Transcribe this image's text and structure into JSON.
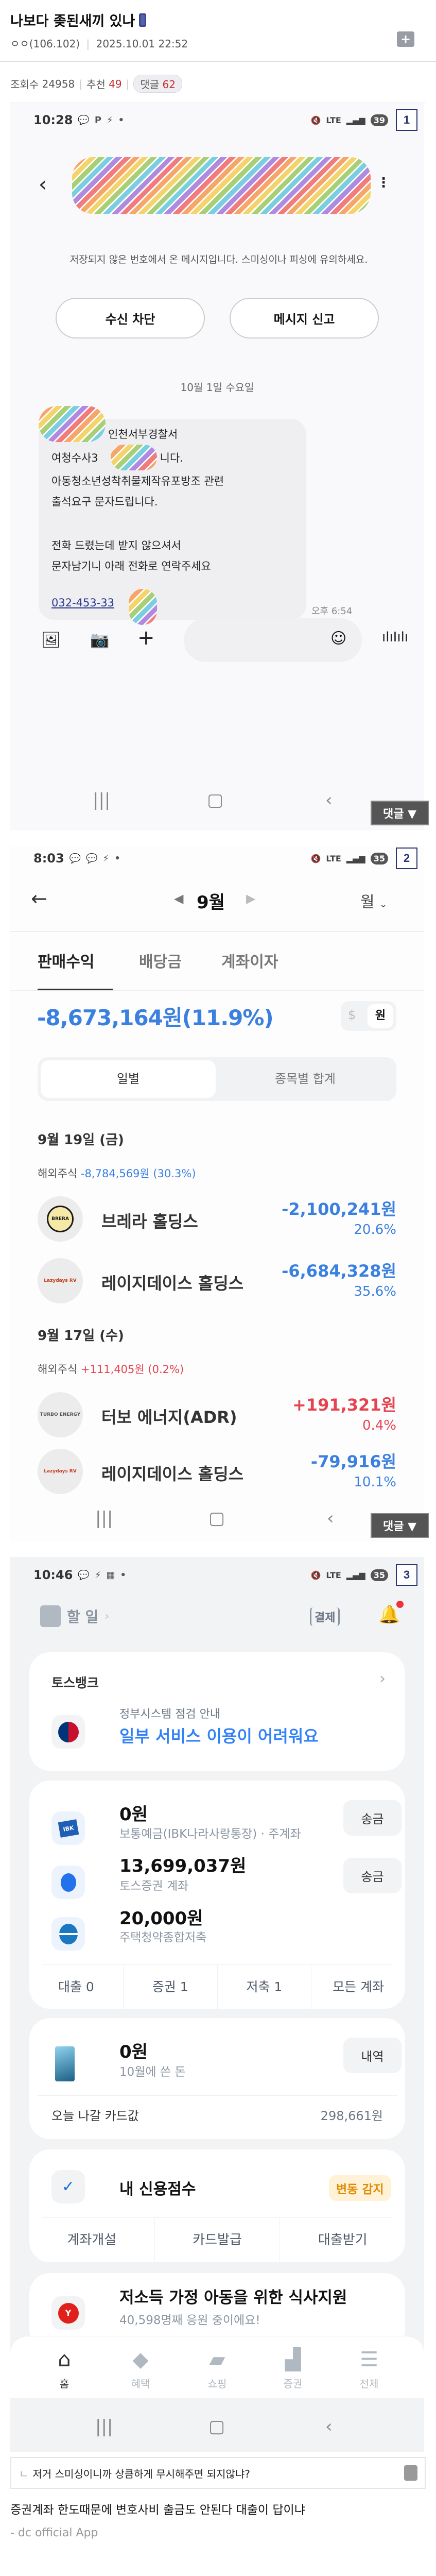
{
  "post": {
    "title": "나보다 좆된새끼 있나",
    "author": "ㅇㅇ(106.102)",
    "date": "2025.10.01 22:52",
    "views_label": "조회수",
    "views": "24958",
    "recommend_label": "추천",
    "recommend": "49",
    "comments_label": "댓글",
    "comments": "62",
    "comment_button": "댓글 ▼"
  },
  "shot1": {
    "badge": "1",
    "time": "10:28",
    "battery": "39",
    "warning": "저장되지 않은 번호에서 온 메시지입니다. 스미싱이나 피싱에 유의하세요.",
    "block_button": "수신 차단",
    "report_button": "메시지 신고",
    "date_divider": "10월 1일 수요일",
    "message_lines": [
      "인천서부경찰서",
      "여청수사3",
      "니다.",
      "아동청소년성착취물제작유포방조 관련",
      "출석요구 문자드립니다.",
      "전화 드렸는데 받지 않으셔서",
      "문자남기니 아래 전화로 연락주세요"
    ],
    "phone": "032-453-33",
    "msg_time": "오후 6:54"
  },
  "shot2": {
    "badge": "2",
    "time": "8:03",
    "battery": "35",
    "month": "9월",
    "period": "월",
    "tabs": [
      "판매수익",
      "배당금",
      "계좌이자"
    ],
    "total": "-8,673,164원(11.9%)",
    "currency": [
      "$",
      "원"
    ],
    "segments": [
      "일별",
      "종목별 합계"
    ],
    "groups": [
      {
        "date": "9월 19일 (금)",
        "category": "해외주식",
        "summary": "-8,784,569원 (30.3%)",
        "items": [
          {
            "name": "브레라 홀딩스",
            "logo": "BRERA",
            "amount": "-2,100,241원",
            "pct": "20.6%"
          },
          {
            "name": "레이지데이스 홀딩스",
            "logo": "Lazydays RV",
            "amount": "-6,684,328원",
            "pct": "35.6%"
          }
        ]
      },
      {
        "date": "9월 17일 (수)",
        "category": "해외주식",
        "summary": "+111,405원 (0.2%)",
        "items": [
          {
            "name": "터보 에너지(ADR)",
            "logo": "TURBO ENERGY",
            "amount": "+191,321원",
            "pct": "0.4%"
          },
          {
            "name": "레이지데이스 홀딩스",
            "logo": "Lazydays RV",
            "amount": "-79,916원",
            "pct": "10.1%"
          }
        ]
      }
    ],
    "colors": {
      "loss": "#3a80e0",
      "gain": "#e5434f"
    }
  },
  "shot3": {
    "badge": "3",
    "time": "10:46",
    "battery": "35",
    "todo": "할 일",
    "pay": "결제",
    "bank_title": "토스뱅크",
    "notice_sub": "정부시스템 점검 안내",
    "notice_main": "일부 서비스 이용이 어려워요",
    "accounts": [
      {
        "amount": "0원",
        "desc": "보통예금(IBK나라사랑통장) · 주계좌",
        "button": "송금",
        "icon": "IBK"
      },
      {
        "amount": "13,699,037원",
        "desc": "토스증권 계좌",
        "button": "송금",
        "icon": "toss"
      },
      {
        "amount": "20,000원",
        "desc": "주택청약종합저축",
        "icon": "housing"
      }
    ],
    "account_tabs": [
      "대출 0",
      "증권 1",
      "저축 1",
      "모든 계좌"
    ],
    "card_spend": {
      "amount": "0원",
      "desc": "10월에 쓴 돈",
      "button": "내역"
    },
    "card_due_label": "오늘 나갈 카드값",
    "card_due_value": "298,661원",
    "credit_title": "내 신용점수",
    "credit_badge": "변동 감지",
    "credit_actions": [
      "계좌개설",
      "카드발급",
      "대출받기"
    ],
    "donation_title": "저소득 가정 아동을 위한 식사지원",
    "donation_sub": "40,598명째 응원 중이에요!",
    "bottom_nav": [
      "홈",
      "혜택",
      "쇼핑",
      "증권",
      "전체"
    ],
    "accent": "#3182f6"
  },
  "reply_preview": "저거 스미싱이니까 상큼하게 무시해주면 되지않냐?",
  "body_text": "증권계좌 한도때문에 변호사비 출금도 안된다 대출이 답이냐",
  "footer": "- dc official App"
}
